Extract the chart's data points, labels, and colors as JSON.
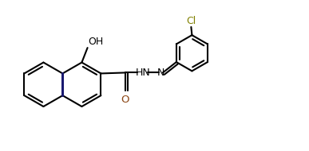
{
  "bg": "#ffffff",
  "bc": "#000000",
  "blue": "#191970",
  "olive": "#808000",
  "brown": "#8B4513",
  "lw": 1.5,
  "fs": 9.0,
  "naph_r": 0.27,
  "ph_r": 0.22,
  "xlim": [
    0.0,
    3.87
  ],
  "ylim": [
    0.0,
    1.9
  ],
  "figw": 3.87,
  "figh": 1.9
}
